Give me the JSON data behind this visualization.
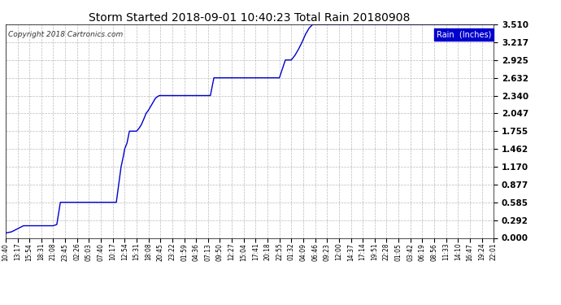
{
  "title": "Storm Started 2018-09-01 10:40:23 Total Rain 20180908",
  "copyright": "Copyright 2018 Cartronics.com",
  "legend_label": "Rain  (Inches)",
  "line_color": "#0000CC",
  "background_color": "#ffffff",
  "grid_color": "#aaaaaa",
  "ylim": [
    0.0,
    3.51
  ],
  "yticks": [
    0.0,
    0.292,
    0.585,
    0.877,
    1.17,
    1.462,
    1.755,
    2.047,
    2.34,
    2.632,
    2.925,
    3.217,
    3.51
  ],
  "xtick_labels": [
    "10:40",
    "13:17",
    "15:54",
    "18:31",
    "21:08",
    "23:45",
    "02:26",
    "05:03",
    "07:40",
    "10:17",
    "12:54",
    "15:31",
    "18:08",
    "20:45",
    "23:22",
    "01:59",
    "04:36",
    "07:13",
    "09:50",
    "12:27",
    "15:04",
    "17:41",
    "20:18",
    "22:55",
    "01:32",
    "04:09",
    "06:46",
    "09:23",
    "12:00",
    "14:37",
    "17:14",
    "19:51",
    "22:28",
    "01:05",
    "03:42",
    "06:19",
    "08:56",
    "11:33",
    "14:10",
    "16:47",
    "19:24",
    "22:01"
  ],
  "step_data": [
    [
      0,
      0.08
    ],
    [
      0.5,
      0.1
    ],
    [
      1.0,
      0.15
    ],
    [
      1.5,
      0.2
    ],
    [
      2.0,
      0.2
    ],
    [
      3.0,
      0.2
    ],
    [
      3.5,
      0.2
    ],
    [
      4.0,
      0.2
    ],
    [
      4.3,
      0.22
    ],
    [
      4.6,
      0.585
    ],
    [
      5.0,
      0.585
    ],
    [
      6.0,
      0.585
    ],
    [
      7.0,
      0.585
    ],
    [
      8.0,
      0.585
    ],
    [
      9.0,
      0.585
    ],
    [
      9.3,
      0.585
    ],
    [
      9.5,
      0.877
    ],
    [
      9.7,
      1.17
    ],
    [
      9.9,
      1.35
    ],
    [
      10.0,
      1.462
    ],
    [
      10.2,
      1.56
    ],
    [
      10.4,
      1.755
    ],
    [
      10.6,
      1.755
    ],
    [
      11.0,
      1.755
    ],
    [
      11.2,
      1.8
    ],
    [
      11.4,
      1.86
    ],
    [
      11.6,
      1.95
    ],
    [
      11.8,
      2.047
    ],
    [
      12.0,
      2.1
    ],
    [
      12.3,
      2.2
    ],
    [
      12.6,
      2.3
    ],
    [
      12.9,
      2.34
    ],
    [
      13.0,
      2.34
    ],
    [
      14.0,
      2.34
    ],
    [
      15.0,
      2.34
    ],
    [
      16.0,
      2.34
    ],
    [
      17.0,
      2.34
    ],
    [
      17.2,
      2.34
    ],
    [
      17.5,
      2.632
    ],
    [
      18.0,
      2.632
    ],
    [
      19.0,
      2.632
    ],
    [
      20.0,
      2.632
    ],
    [
      21.0,
      2.632
    ],
    [
      22.0,
      2.632
    ],
    [
      23.0,
      2.632
    ],
    [
      23.5,
      2.925
    ],
    [
      24.0,
      2.925
    ],
    [
      24.3,
      3.0
    ],
    [
      24.6,
      3.1
    ],
    [
      24.9,
      3.217
    ],
    [
      25.2,
      3.35
    ],
    [
      25.5,
      3.45
    ],
    [
      25.8,
      3.51
    ],
    [
      26.0,
      3.51
    ],
    [
      41.0,
      3.51
    ]
  ]
}
